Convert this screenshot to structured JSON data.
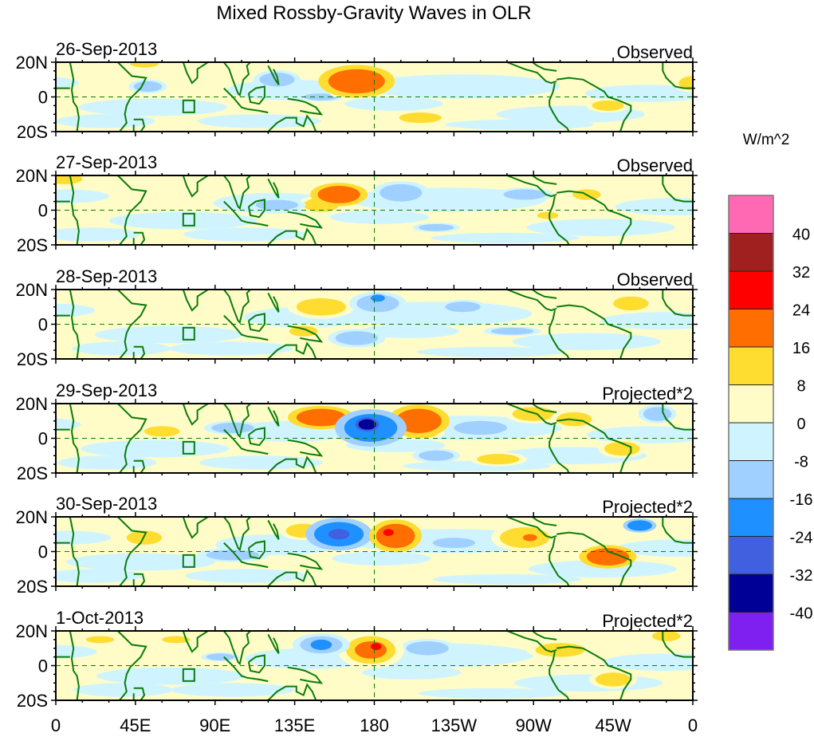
{
  "chart_data": {
    "type": "heatmap",
    "title": "Mixed Rossby-Gravity Waves in OLR",
    "colorbar": {
      "label": "W/m^2",
      "levels": [
        -40,
        -32,
        -24,
        -16,
        -8,
        0,
        8,
        16,
        24,
        32,
        40
      ],
      "level_labels": [
        "-40",
        "-32",
        "-24",
        "-16",
        "-8",
        "0",
        "8",
        "16",
        "24",
        "32",
        "40"
      ],
      "colors": [
        "#8020f0",
        "#000096",
        "#4060e0",
        "#1e90ff",
        "#a0d0ff",
        "#d0f4ff",
        "#fffcc8",
        "#ffdc30",
        "#ff6e00",
        "#ff0000",
        "#a02020",
        "#ff69b4"
      ]
    },
    "x_axis": {
      "range_deg_east": [
        0,
        360
      ],
      "tick_labels": [
        "0",
        "45E",
        "90E",
        "135E",
        "180",
        "135W",
        "90W",
        "45W",
        "0"
      ],
      "tick_values": [
        0,
        45,
        90,
        135,
        180,
        225,
        270,
        315,
        360
      ]
    },
    "y_axis": {
      "range_deg": [
        -20,
        20
      ],
      "tick_labels": [
        "20N",
        "0",
        "20S"
      ],
      "tick_values": [
        20,
        0,
        -20
      ]
    },
    "reference_lines": {
      "equator": 0,
      "dateline_lon": 180
    },
    "panels": [
      {
        "date": "26-Sep-2013",
        "type_label": "Observed",
        "anomalies": [
          {
            "lon": 170,
            "lat": 9,
            "wlon": 16,
            "wlat": 7,
            "value": 18
          },
          {
            "lon": 165,
            "lat": 3,
            "wlon": 8,
            "wlat": 3,
            "value": 12
          },
          {
            "lon": 125,
            "lat": 10,
            "wlon": 10,
            "wlat": 4,
            "value": -10
          },
          {
            "lon": 52,
            "lat": 6,
            "wlon": 8,
            "wlat": 3,
            "value": -9
          },
          {
            "lon": 206,
            "lat": -12,
            "wlon": 12,
            "wlat": 3,
            "value": 9
          },
          {
            "lon": 312,
            "lat": -5,
            "wlon": 9,
            "wlat": 3,
            "value": 10
          },
          {
            "lon": 360,
            "lat": 8,
            "wlon": 8,
            "wlat": 4,
            "value": 10
          },
          {
            "lon": 50,
            "lat": 19,
            "wlon": 8,
            "wlat": 2,
            "value": 9
          },
          {
            "lon": 150,
            "lat": 0,
            "wlon": 10,
            "wlat": 2,
            "value": -9
          }
        ]
      },
      {
        "date": "27-Sep-2013",
        "type_label": "Observed",
        "anomalies": [
          {
            "lon": 160,
            "lat": 9,
            "wlon": 12,
            "wlat": 5,
            "value": 16
          },
          {
            "lon": 150,
            "lat": 3,
            "wlon": 10,
            "wlat": 4,
            "value": 9
          },
          {
            "lon": 195,
            "lat": 10,
            "wlon": 12,
            "wlat": 5,
            "value": -10
          },
          {
            "lon": 265,
            "lat": 9,
            "wlon": 12,
            "wlat": 3,
            "value": -10
          },
          {
            "lon": 300,
            "lat": 9,
            "wlon": 8,
            "wlat": 3,
            "value": 10
          },
          {
            "lon": 5,
            "lat": 18,
            "wlon": 10,
            "wlat": 3,
            "value": 9
          },
          {
            "lon": 215,
            "lat": -10,
            "wlon": 10,
            "wlat": 2,
            "value": -9
          },
          {
            "lon": 278,
            "lat": -3,
            "wlon": 6,
            "wlat": 2,
            "value": 9
          },
          {
            "lon": 125,
            "lat": 3,
            "wlon": 12,
            "wlat": 3,
            "value": -9
          }
        ]
      },
      {
        "date": "28-Sep-2013",
        "type_label": "Observed",
        "anomalies": [
          {
            "lon": 150,
            "lat": 10,
            "wlon": 14,
            "wlat": 5,
            "value": 11
          },
          {
            "lon": 182,
            "lat": 12,
            "wlon": 12,
            "wlat": 5,
            "value": -12
          },
          {
            "lon": 182,
            "lat": 15,
            "wlon": 4,
            "wlat": 2,
            "value": -18
          },
          {
            "lon": 170,
            "lat": -8,
            "wlon": 12,
            "wlat": 4,
            "value": -9
          },
          {
            "lon": 140,
            "lat": -4,
            "wlon": 8,
            "wlat": 3,
            "value": 9
          },
          {
            "lon": 230,
            "lat": 10,
            "wlon": 10,
            "wlat": 3,
            "value": -9
          },
          {
            "lon": 325,
            "lat": 12,
            "wlon": 10,
            "wlat": 4,
            "value": 10
          },
          {
            "lon": 258,
            "lat": -4,
            "wlon": 12,
            "wlat": 2,
            "value": -9
          }
        ]
      },
      {
        "date": "29-Sep-2013",
        "type_label": "Projected*2",
        "anomalies": [
          {
            "lon": 178,
            "lat": 6,
            "wlon": 15,
            "wlat": 8,
            "value": -22
          },
          {
            "lon": 176,
            "lat": 8,
            "wlon": 5,
            "wlat": 3,
            "value": -38
          },
          {
            "lon": 150,
            "lat": 12,
            "wlon": 14,
            "wlat": 5,
            "value": 16
          },
          {
            "lon": 205,
            "lat": 10,
            "wlon": 13,
            "wlat": 7,
            "value": 17
          },
          {
            "lon": 206,
            "lat": 3,
            "wlon": 10,
            "wlat": 3,
            "value": 12
          },
          {
            "lon": 100,
            "lat": 6,
            "wlon": 12,
            "wlat": 3,
            "value": -10
          },
          {
            "lon": 60,
            "lat": 4,
            "wlon": 10,
            "wlat": 3,
            "value": 10
          },
          {
            "lon": 270,
            "lat": 14,
            "wlon": 12,
            "wlat": 4,
            "value": 10
          },
          {
            "lon": 293,
            "lat": 11,
            "wlon": 10,
            "wlat": 4,
            "value": 15
          },
          {
            "lon": 240,
            "lat": 6,
            "wlon": 15,
            "wlat": 4,
            "value": -10
          },
          {
            "lon": 250,
            "lat": -12,
            "wlon": 12,
            "wlat": 3,
            "value": 10
          },
          {
            "lon": 320,
            "lat": -6,
            "wlon": 10,
            "wlat": 4,
            "value": 12
          },
          {
            "lon": 340,
            "lat": 14,
            "wlon": 8,
            "wlat": 4,
            "value": -12
          },
          {
            "lon": 215,
            "lat": -10,
            "wlon": 10,
            "wlat": 3,
            "value": -10
          }
        ]
      },
      {
        "date": "30-Sep-2013",
        "type_label": "Projected*2",
        "anomalies": [
          {
            "lon": 160,
            "lat": 10,
            "wlon": 14,
            "wlat": 7,
            "value": -18
          },
          {
            "lon": 160,
            "lat": 10,
            "wlon": 6,
            "wlat": 3,
            "value": -28
          },
          {
            "lon": 192,
            "lat": 9,
            "wlon": 11,
            "wlat": 7,
            "value": 18
          },
          {
            "lon": 188,
            "lat": 11,
            "wlon": 3,
            "wlat": 2,
            "value": 26
          },
          {
            "lon": 140,
            "lat": 12,
            "wlon": 10,
            "wlat": 4,
            "value": 10
          },
          {
            "lon": 265,
            "lat": 8,
            "wlon": 14,
            "wlat": 6,
            "value": 12
          },
          {
            "lon": 268,
            "lat": 8,
            "wlon": 4,
            "wlat": 2,
            "value": 18
          },
          {
            "lon": 312,
            "lat": -3,
            "wlon": 12,
            "wlat": 5,
            "value": 16
          },
          {
            "lon": 330,
            "lat": 15,
            "wlon": 7,
            "wlat": 3,
            "value": -18
          },
          {
            "lon": 225,
            "lat": 5,
            "wlon": 12,
            "wlat": 3,
            "value": -10
          },
          {
            "lon": 50,
            "lat": 8,
            "wlon": 10,
            "wlat": 4,
            "value": 9
          },
          {
            "lon": 100,
            "lat": -2,
            "wlon": 15,
            "wlat": 3,
            "value": -9
          }
        ]
      },
      {
        "date": "1-Oct-2013",
        "type_label": "Projected*2",
        "anomalies": [
          {
            "lon": 178,
            "lat": 9,
            "wlon": 14,
            "wlat": 8,
            "value": 14
          },
          {
            "lon": 178,
            "lat": 9,
            "wlon": 9,
            "wlat": 5,
            "value": 19
          },
          {
            "lon": 181,
            "lat": 11,
            "wlon": 3,
            "wlat": 2,
            "value": 27
          },
          {
            "lon": 150,
            "lat": 12,
            "wlon": 12,
            "wlat": 5,
            "value": -14
          },
          {
            "lon": 150,
            "lat": 12,
            "wlon": 6,
            "wlat": 3,
            "value": -18
          },
          {
            "lon": 210,
            "lat": 10,
            "wlon": 12,
            "wlat": 4,
            "value": -9
          },
          {
            "lon": 285,
            "lat": 9,
            "wlon": 14,
            "wlat": 4,
            "value": 10
          },
          {
            "lon": 315,
            "lat": -8,
            "wlon": 10,
            "wlat": 4,
            "value": 10
          },
          {
            "lon": 25,
            "lat": 15,
            "wlon": 8,
            "wlat": 2,
            "value": 9
          },
          {
            "lon": 68,
            "lat": 15,
            "wlon": 8,
            "wlat": 2,
            "value": 10
          },
          {
            "lon": 93,
            "lat": 5,
            "wlon": 8,
            "wlat": 2,
            "value": -9
          },
          {
            "lon": 345,
            "lat": 17,
            "wlon": 8,
            "wlat": 3,
            "value": 10
          }
        ]
      }
    ]
  }
}
